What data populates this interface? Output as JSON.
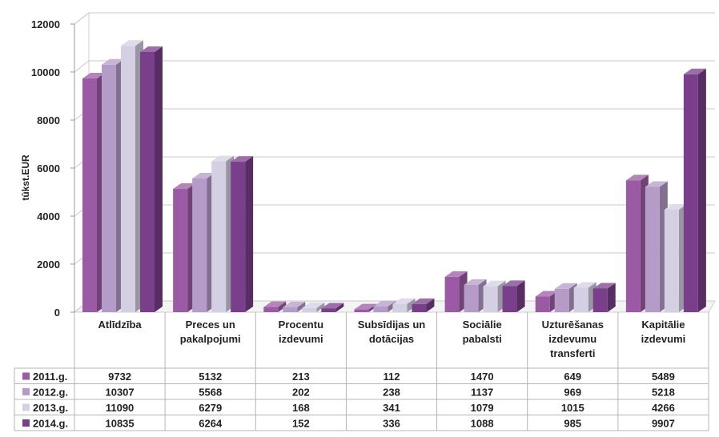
{
  "chart_data": {
    "type": "bar",
    "ylabel": "tūkst.EUR",
    "ylim": [
      0,
      12000
    ],
    "yticks": [
      0,
      2000,
      4000,
      6000,
      8000,
      10000,
      12000
    ],
    "grid": true,
    "legend": "data-table-below",
    "categories": [
      [
        "Atlīdzība"
      ],
      [
        "Preces un",
        "pakalpojumi"
      ],
      [
        "Procentu",
        "izdevumi"
      ],
      [
        "Subsīdijas un",
        "dotācijas"
      ],
      [
        "Sociālie",
        "pabalsti"
      ],
      [
        "Uzturēšanas",
        "izdevumu",
        "transferti"
      ],
      [
        "Kapitālie",
        "izdevumi"
      ]
    ],
    "series": [
      {
        "name": "2011.g.",
        "color": "#9b5ba4",
        "values": [
          9732,
          5132,
          213,
          112,
          1470,
          649,
          5489
        ]
      },
      {
        "name": "2012.g.",
        "color": "#b49bc8",
        "values": [
          10307,
          5568,
          202,
          238,
          1137,
          969,
          5218
        ]
      },
      {
        "name": "2013.g.",
        "color": "#d5cfe3",
        "values": [
          11090,
          6279,
          168,
          341,
          1079,
          1015,
          4266
        ]
      },
      {
        "name": "2014.g.",
        "color": "#7a3f8a",
        "values": [
          10835,
          6264,
          152,
          336,
          1088,
          985,
          9907
        ]
      }
    ]
  }
}
